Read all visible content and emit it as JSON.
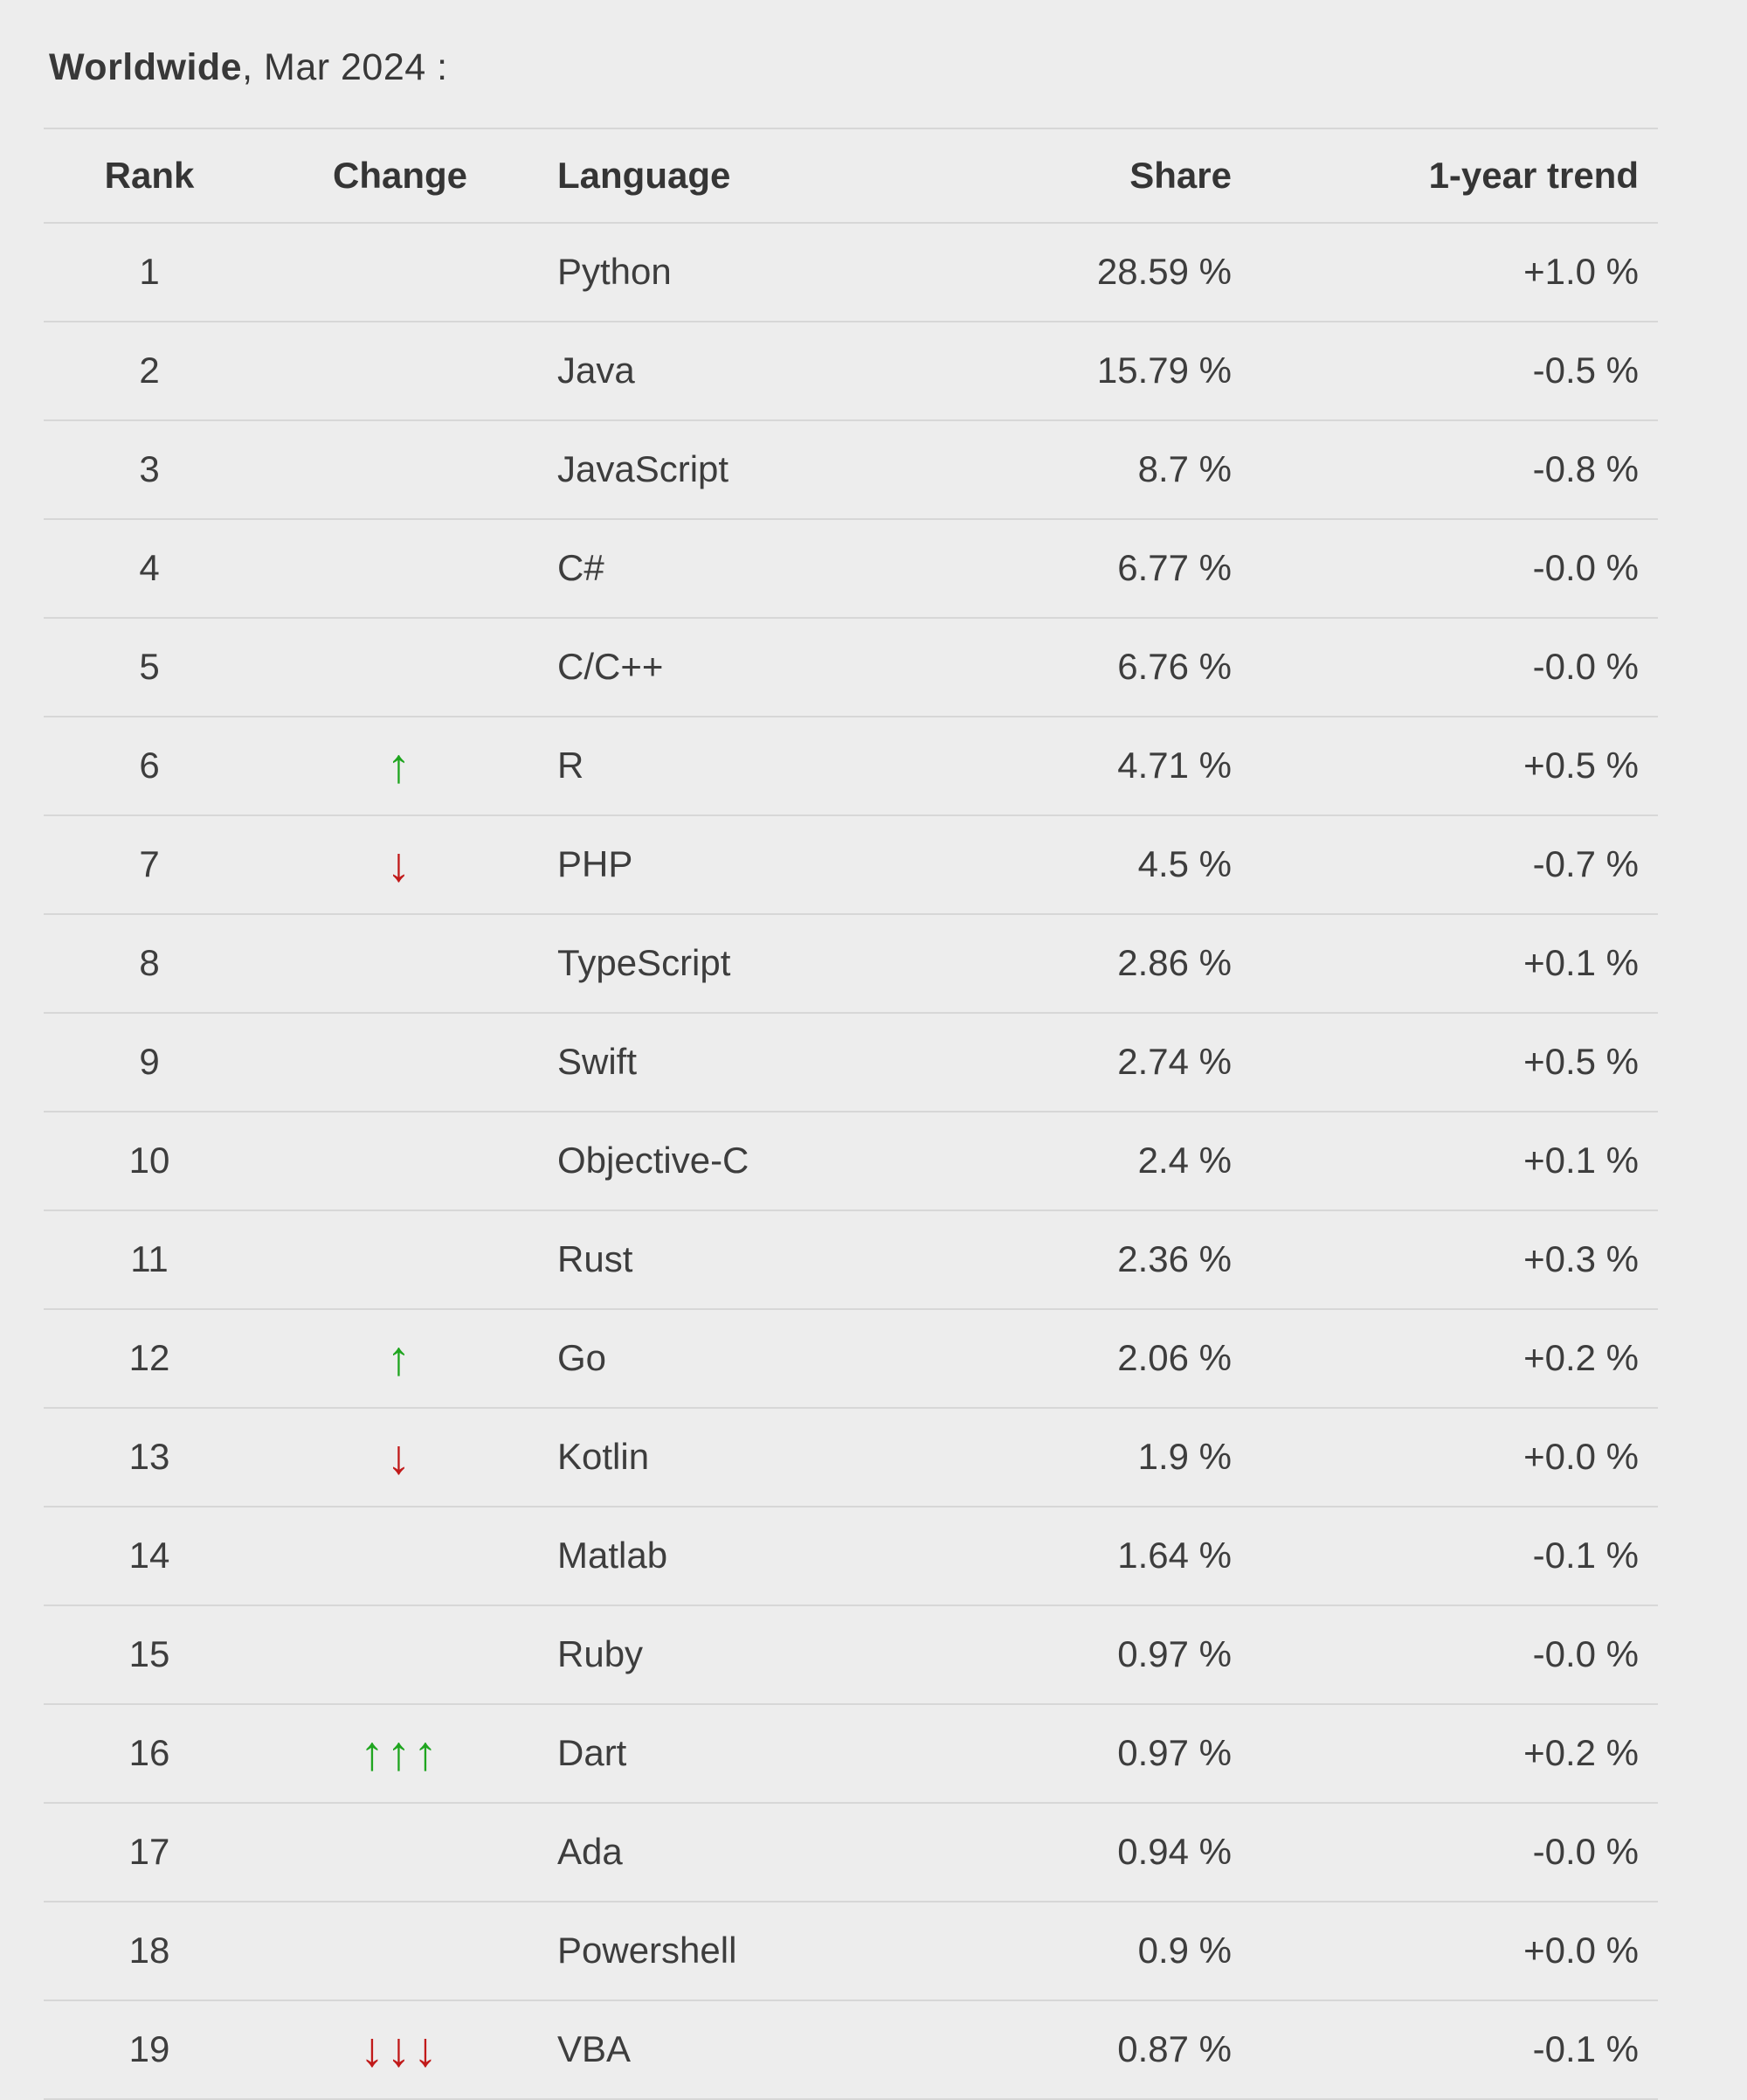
{
  "title": {
    "region": "Worldwide",
    "suffix": ", Mar 2024 :"
  },
  "colors": {
    "background": "#ededed",
    "divider": "#d7d7d7",
    "text": "#3d3d3d",
    "up_arrow": "#1fa51f",
    "down_arrow": "#c11a1a"
  },
  "icons": {
    "up_arrow": "↑",
    "down_arrow": "↓"
  },
  "table": {
    "headers": {
      "rank": "Rank",
      "change": "Change",
      "language": "Language",
      "share": "Share",
      "trend": "1-year trend"
    },
    "rows": [
      {
        "rank": "1",
        "change": "",
        "change_icon": "",
        "language": "Python",
        "share": "28.59 %",
        "trend": "+1.0 %"
      },
      {
        "rank": "2",
        "change": "",
        "change_icon": "",
        "language": "Java",
        "share": "15.79 %",
        "trend": "-0.5 %"
      },
      {
        "rank": "3",
        "change": "",
        "change_icon": "",
        "language": "JavaScript",
        "share": "8.7 %",
        "trend": "-0.8 %"
      },
      {
        "rank": "4",
        "change": "",
        "change_icon": "",
        "language": "C#",
        "share": "6.77 %",
        "trend": "-0.0 %"
      },
      {
        "rank": "5",
        "change": "",
        "change_icon": "",
        "language": "C/C++",
        "share": "6.76 %",
        "trend": "-0.0 %"
      },
      {
        "rank": "6",
        "change": "up",
        "change_icon": "↑",
        "language": "R",
        "share": "4.71 %",
        "trend": "+0.5 %"
      },
      {
        "rank": "7",
        "change": "down",
        "change_icon": "↓",
        "language": "PHP",
        "share": "4.5 %",
        "trend": "-0.7 %"
      },
      {
        "rank": "8",
        "change": "",
        "change_icon": "",
        "language": "TypeScript",
        "share": "2.86 %",
        "trend": "+0.1 %"
      },
      {
        "rank": "9",
        "change": "",
        "change_icon": "",
        "language": "Swift",
        "share": "2.74 %",
        "trend": "+0.5 %"
      },
      {
        "rank": "10",
        "change": "",
        "change_icon": "",
        "language": "Objective-C",
        "share": "2.4 %",
        "trend": "+0.1 %"
      },
      {
        "rank": "11",
        "change": "",
        "change_icon": "",
        "language": "Rust",
        "share": "2.36 %",
        "trend": "+0.3 %"
      },
      {
        "rank": "12",
        "change": "up",
        "change_icon": "↑",
        "language": "Go",
        "share": "2.06 %",
        "trend": "+0.2 %"
      },
      {
        "rank": "13",
        "change": "down",
        "change_icon": "↓",
        "language": "Kotlin",
        "share": "1.9 %",
        "trend": "+0.0 %"
      },
      {
        "rank": "14",
        "change": "",
        "change_icon": "",
        "language": "Matlab",
        "share": "1.64 %",
        "trend": "-0.1 %"
      },
      {
        "rank": "15",
        "change": "",
        "change_icon": "",
        "language": "Ruby",
        "share": "0.97 %",
        "trend": "-0.0 %"
      },
      {
        "rank": "16",
        "change": "up",
        "change_icon": "↑↑↑",
        "language": "Dart",
        "share": "0.97 %",
        "trend": "+0.2 %"
      },
      {
        "rank": "17",
        "change": "",
        "change_icon": "",
        "language": "Ada",
        "share": "0.94 %",
        "trend": "-0.0 %"
      },
      {
        "rank": "18",
        "change": "",
        "change_icon": "",
        "language": "Powershell",
        "share": "0.9 %",
        "trend": "+0.0 %"
      },
      {
        "rank": "19",
        "change": "down",
        "change_icon": "↓↓↓",
        "language": "VBA",
        "share": "0.87 %",
        "trend": "-0.1 %"
      }
    ]
  }
}
